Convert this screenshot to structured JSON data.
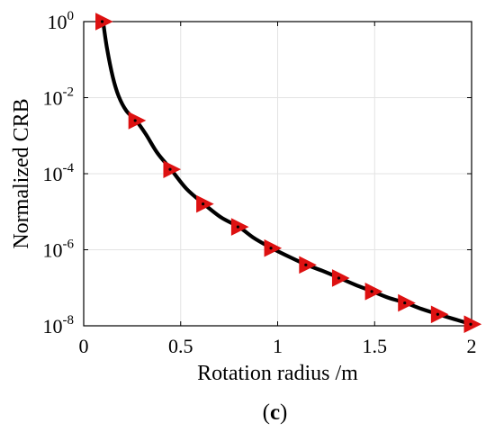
{
  "chart_data": {
    "type": "line",
    "xlabel": "Rotation radius /m",
    "ylabel": "Normalized CRB",
    "caption": {
      "open": "(",
      "letter": "c",
      "close": ")"
    },
    "xlim": [
      0,
      2
    ],
    "ylim": [
      1e-08,
      1
    ],
    "yscale": "log",
    "grid": true,
    "x_ticks": [
      {
        "value": 0,
        "label": "0"
      },
      {
        "value": 0.5,
        "label": "0.5"
      },
      {
        "value": 1,
        "label": "1"
      },
      {
        "value": 1.5,
        "label": "1.5"
      },
      {
        "value": 2,
        "label": "2"
      }
    ],
    "y_ticks": [
      {
        "value": 1,
        "base": "10",
        "exp": "0"
      },
      {
        "value": 0.01,
        "base": "10",
        "exp": "-2"
      },
      {
        "value": 0.0001,
        "base": "10",
        "exp": "-4"
      },
      {
        "value": 1e-06,
        "base": "10",
        "exp": "-6"
      },
      {
        "value": 1e-08,
        "base": "10",
        "exp": "-8"
      }
    ],
    "series": [
      {
        "style": "line",
        "color": "#000000",
        "x": [
          0.1,
          0.12,
          0.15,
          0.18,
          0.22,
          0.27,
          0.32,
          0.38,
          0.45,
          0.53,
          0.62,
          0.71,
          0.8,
          0.88,
          0.97,
          1.06,
          1.15,
          1.23,
          1.32,
          1.4,
          1.49,
          1.57,
          1.66,
          1.74,
          1.83,
          1.91,
          2.0
        ],
        "y": [
          1.0,
          0.2,
          0.035,
          0.011,
          0.0045,
          0.0025,
          0.0011,
          0.00035,
          0.00013,
          4e-05,
          1.6e-05,
          7e-06,
          4e-06,
          2e-06,
          1.1e-06,
          6.5e-07,
          4e-07,
          2.8e-07,
          1.8e-07,
          1.2e-07,
          8e-08,
          5.5e-08,
          4e-08,
          2.8e-08,
          2e-08,
          1.5e-08,
          1.1e-08
        ]
      },
      {
        "style": "markers",
        "marker": "triangle-right",
        "marker_fill": "#dd1111",
        "x": [
          0.1,
          0.27,
          0.45,
          0.62,
          0.8,
          0.97,
          1.15,
          1.32,
          1.49,
          1.66,
          1.83,
          2.0
        ],
        "y": [
          1.0,
          0.0025,
          0.00013,
          1.6e-05,
          4e-06,
          1.1e-06,
          4e-07,
          1.8e-07,
          8e-08,
          4e-08,
          2e-08,
          1.1e-08
        ]
      }
    ]
  }
}
